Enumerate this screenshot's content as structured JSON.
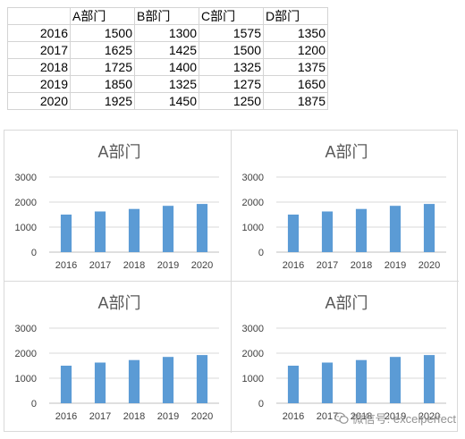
{
  "table": {
    "headers": [
      "",
      "A部门",
      "B部门",
      "C部门",
      "D部门"
    ],
    "rows": [
      [
        "2016",
        "1500",
        "1300",
        "1575",
        "1350"
      ],
      [
        "2017",
        "1625",
        "1425",
        "1500",
        "1200"
      ],
      [
        "2018",
        "1725",
        "1400",
        "1325",
        "1375"
      ],
      [
        "2019",
        "1850",
        "1325",
        "1275",
        "1650"
      ],
      [
        "2020",
        "1925",
        "1450",
        "1250",
        "1875"
      ]
    ]
  },
  "chart_data": [
    {
      "type": "bar",
      "title": "A部门",
      "categories": [
        "2016",
        "2017",
        "2018",
        "2019",
        "2020"
      ],
      "values": [
        1500,
        1625,
        1725,
        1850,
        1925
      ],
      "ylim": [
        0,
        3000
      ],
      "yticks": [
        0,
        1000,
        2000,
        3000
      ],
      "grid": true,
      "bar_color": "#5b9bd5"
    },
    {
      "type": "bar",
      "title": "A部门",
      "categories": [
        "2016",
        "2017",
        "2018",
        "2019",
        "2020"
      ],
      "values": [
        1500,
        1625,
        1725,
        1850,
        1925
      ],
      "ylim": [
        0,
        3000
      ],
      "yticks": [
        0,
        1000,
        2000,
        3000
      ],
      "grid": true,
      "bar_color": "#5b9bd5"
    },
    {
      "type": "bar",
      "title": "A部门",
      "categories": [
        "2016",
        "2017",
        "2018",
        "2019",
        "2020"
      ],
      "values": [
        1500,
        1625,
        1725,
        1850,
        1925
      ],
      "ylim": [
        0,
        3000
      ],
      "yticks": [
        0,
        1000,
        2000,
        3000
      ],
      "grid": true,
      "bar_color": "#5b9bd5"
    },
    {
      "type": "bar",
      "title": "A部门",
      "categories": [
        "2016",
        "2017",
        "2018",
        "2019",
        "2020"
      ],
      "values": [
        1500,
        1625,
        1725,
        1850,
        1925
      ],
      "ylim": [
        0,
        3000
      ],
      "yticks": [
        0,
        1000,
        2000,
        3000
      ],
      "grid": true,
      "bar_color": "#5b9bd5"
    }
  ],
  "watermark": {
    "icon": "wechat-icon",
    "text": "微信号: excelperfect"
  }
}
